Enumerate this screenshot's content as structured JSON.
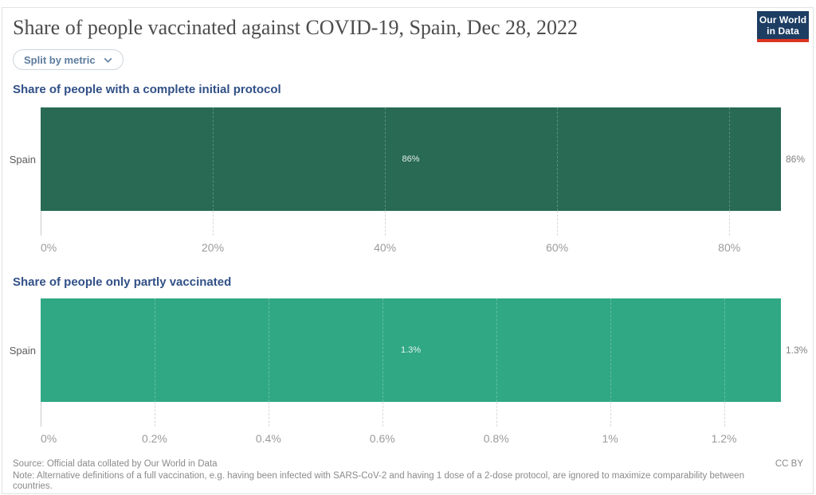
{
  "header": {
    "title": "Share of people vaccinated against COVID-19, Spain, Dec 28, 2022",
    "logo": {
      "line1": "Our World",
      "line2": "in Data",
      "bg_color": "#1d3d63",
      "stripe_color": "#dc3522"
    },
    "split_button_label": "Split by metric"
  },
  "charts": [
    {
      "heading": "Share of people with a complete initial protocol",
      "entity": "Spain",
      "value": 86,
      "value_label": "86%",
      "bar_color": "#286a53",
      "axis_max": 86,
      "ticks": [
        {
          "value": 0,
          "label": "0%"
        },
        {
          "value": 20,
          "label": "20%"
        },
        {
          "value": 40,
          "label": "40%"
        },
        {
          "value": 60,
          "label": "60%"
        },
        {
          "value": 80,
          "label": "80%"
        }
      ]
    },
    {
      "heading": "Share of people only partly vaccinated",
      "entity": "Spain",
      "value": 1.3,
      "value_label": "1.3%",
      "bar_color": "#30a883",
      "axis_max": 1.3,
      "ticks": [
        {
          "value": 0,
          "label": "0%"
        },
        {
          "value": 0.2,
          "label": "0.2%"
        },
        {
          "value": 0.4,
          "label": "0.4%"
        },
        {
          "value": 0.6,
          "label": "0.6%"
        },
        {
          "value": 0.8,
          "label": "0.8%"
        },
        {
          "value": 1.0,
          "label": "1%"
        },
        {
          "value": 1.2,
          "label": "1.2%"
        }
      ]
    }
  ],
  "footer": {
    "source": "Source: Official data collated by Our World in Data",
    "note": "Note: Alternative definitions of a full vaccination, e.g. having been infected with SARS-CoV-2 and having 1 dose of a 2-dose protocol, are ignored to maximize comparability between countries.",
    "license": "CC BY"
  },
  "chart_data": [
    {
      "type": "bar",
      "orientation": "horizontal",
      "title": "Share of people with a complete initial protocol",
      "categories": [
        "Spain"
      ],
      "values": [
        86
      ],
      "value_labels": [
        "86%"
      ],
      "xlabel": "",
      "ylabel": "",
      "xlim": [
        0,
        86
      ],
      "xticks": [
        0,
        20,
        40,
        60,
        80
      ],
      "xtick_labels": [
        "0%",
        "20%",
        "40%",
        "60%",
        "80%"
      ],
      "grid": true,
      "bar_color": "#286a53"
    },
    {
      "type": "bar",
      "orientation": "horizontal",
      "title": "Share of people only partly vaccinated",
      "categories": [
        "Spain"
      ],
      "values": [
        1.3
      ],
      "value_labels": [
        "1.3%"
      ],
      "xlabel": "",
      "ylabel": "",
      "xlim": [
        0,
        1.3
      ],
      "xticks": [
        0,
        0.2,
        0.4,
        0.6,
        0.8,
        1.0,
        1.2
      ],
      "xtick_labels": [
        "0%",
        "0.2%",
        "0.4%",
        "0.6%",
        "0.8%",
        "1%",
        "1.2%"
      ],
      "grid": true,
      "bar_color": "#30a883"
    }
  ]
}
